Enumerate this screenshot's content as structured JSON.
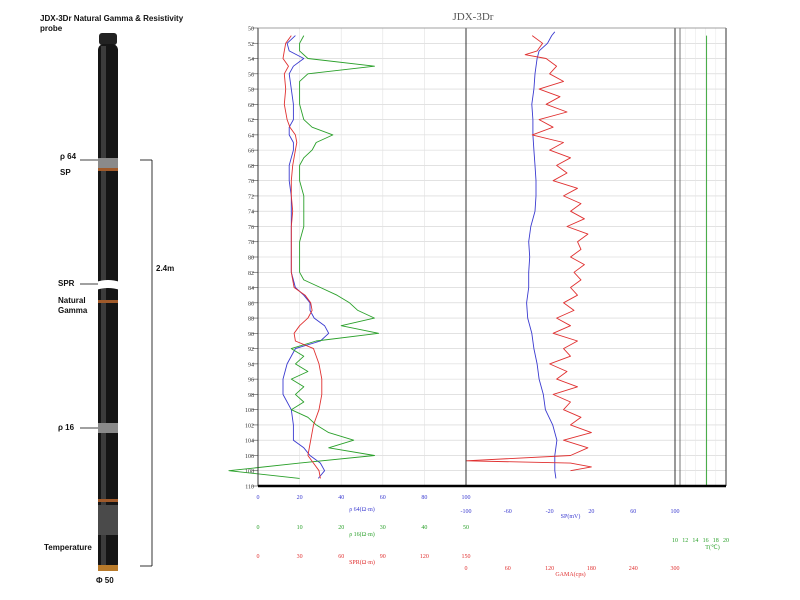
{
  "probe": {
    "title": "JDX-3Dr Natural Gamma & Resistivity probe",
    "labels": {
      "rho64": "ρ 64",
      "sp": "SP",
      "spr": "SPR",
      "gamma": "Natural Gamma",
      "rho16": "ρ 16",
      "temp": "Temperature",
      "diameter": "Φ 50",
      "length": "2.4m"
    }
  },
  "chart_data": {
    "type": "line",
    "title": "JDX-3Dr",
    "depth": {
      "range": [
        50,
        110
      ],
      "ticks": [
        50,
        52,
        54,
        56,
        58,
        60,
        62,
        64,
        66,
        68,
        70,
        72,
        74,
        76,
        78,
        80,
        82,
        84,
        86,
        88,
        90,
        92,
        94,
        96,
        98,
        100,
        102,
        104,
        106,
        108,
        110
      ],
      "grid": true
    },
    "axes": {
      "rho64": {
        "label": "ρ 64(Ω·m)",
        "color": "#3a3ad0",
        "range": [
          0,
          100
        ],
        "ticks": [
          "0",
          "20",
          "40",
          "60",
          "80",
          "100"
        ]
      },
      "rho16": {
        "label": "ρ 16(Ω·m)",
        "color": "#2aa02a",
        "range": [
          0,
          50
        ],
        "ticks": [
          "0",
          "10",
          "20",
          "30",
          "40",
          "50"
        ]
      },
      "spr": {
        "label": "SPR(Ω·m)",
        "color": "#e03030",
        "range": [
          0,
          150
        ],
        "ticks": [
          "0",
          "30",
          "60",
          "90",
          "120",
          "150"
        ]
      },
      "sp": {
        "label": "SP(mV)",
        "color": "#3a3ad0",
        "range": [
          -100,
          100
        ],
        "ticks": [
          "-100",
          "-60",
          "-20",
          "20",
          "60",
          "100"
        ]
      },
      "gamma": {
        "label": "GAMA(cps)",
        "color": "#e03030",
        "range": [
          0,
          300
        ],
        "ticks": [
          "0",
          "60",
          "120",
          "180",
          "240",
          "300"
        ]
      },
      "temp": {
        "label": "T(℃)",
        "color": "#2aa02a",
        "range": [
          10,
          20
        ],
        "ticks": [
          "10",
          "12",
          "14",
          "16",
          "18",
          "20"
        ]
      }
    },
    "series": [
      {
        "key": "rho64",
        "color": "#3a3ad0",
        "track": 1,
        "depth": [
          51,
          52,
          53,
          54,
          55,
          56,
          58,
          60,
          62,
          63,
          64,
          65,
          66,
          68,
          70,
          72,
          74,
          76,
          78,
          80,
          82,
          84,
          85,
          86,
          87,
          88,
          89,
          90,
          91,
          92,
          94,
          96,
          98,
          100,
          102,
          104,
          105,
          106,
          107,
          108,
          109
        ],
        "values": [
          18,
          14,
          15,
          22,
          17,
          15,
          16,
          17,
          17,
          15,
          15,
          17,
          17,
          15,
          15,
          16,
          16,
          16,
          16,
          16,
          16,
          18,
          22,
          25,
          25,
          27,
          32,
          34,
          30,
          18,
          14,
          12,
          12,
          16,
          17,
          17,
          22,
          25,
          30,
          32,
          29
        ]
      },
      {
        "key": "rho16",
        "color": "#2aa02a",
        "track": 1,
        "depth": [
          51,
          52,
          53,
          54,
          55,
          56,
          57,
          58,
          60,
          62,
          63,
          64,
          65,
          66,
          67,
          68,
          70,
          72,
          74,
          76,
          78,
          80,
          82,
          83,
          84,
          85,
          86,
          87,
          88,
          89,
          90,
          91,
          92,
          93,
          94,
          95,
          96,
          97,
          98,
          99,
          100,
          101,
          102,
          103,
          104,
          105,
          106,
          107,
          108,
          109
        ],
        "values": [
          11,
          10,
          10,
          12,
          28,
          12,
          10,
          10,
          10,
          11,
          13,
          18,
          14,
          13,
          11,
          10,
          10,
          11,
          11,
          11,
          10,
          10,
          10,
          11,
          15,
          19,
          22,
          24,
          28,
          20,
          29,
          14,
          8,
          11,
          9,
          12,
          8,
          11,
          9,
          11,
          8,
          12,
          14,
          17,
          23,
          17,
          28,
          10,
          -7,
          10
        ]
      },
      {
        "key": "spr",
        "color": "#e03030",
        "track": 1,
        "depth": [
          51,
          52,
          53,
          54,
          55,
          56,
          58,
          60,
          62,
          63,
          64,
          65,
          66,
          68,
          70,
          72,
          74,
          76,
          78,
          80,
          82,
          84,
          85,
          86,
          87,
          88,
          89,
          90,
          91,
          92,
          94,
          96,
          98,
          100,
          102,
          104,
          106,
          107,
          108,
          109
        ],
        "values": [
          24,
          20,
          19,
          18,
          22,
          19,
          20,
          19,
          21,
          23,
          27,
          28,
          27,
          25,
          24,
          24,
          25,
          24,
          24,
          24,
          24,
          26,
          34,
          38,
          39,
          36,
          30,
          26,
          27,
          40,
          44,
          46,
          46,
          44,
          40,
          38,
          36,
          40,
          44,
          45
        ]
      },
      {
        "key": "sp",
        "color": "#3a3ad0",
        "track": 2,
        "depth": [
          50.5,
          51,
          52,
          53,
          54,
          56,
          58,
          60,
          62,
          64,
          66,
          68,
          70,
          72,
          74,
          76,
          78,
          80,
          82,
          84,
          86,
          88,
          90,
          92,
          94,
          96,
          98,
          100,
          102,
          104,
          106,
          108,
          109
        ],
        "values": [
          -15,
          -18,
          -22,
          -30,
          -32,
          -34,
          -35,
          -37,
          -36,
          -36,
          -35,
          -34,
          -33,
          -33,
          -34,
          -38,
          -40,
          -39,
          -40,
          -40,
          -42,
          -41,
          -37,
          -35,
          -32,
          -30,
          -26,
          -24,
          -17,
          -13,
          -15,
          -15,
          -14
        ]
      },
      {
        "key": "gamma",
        "color": "#e03030",
        "track": 2,
        "irregular": true,
        "depth": [
          51,
          52,
          53,
          53.5,
          54,
          55,
          56,
          57,
          58,
          59,
          60,
          61,
          62,
          63,
          64,
          65,
          66,
          67,
          68,
          69,
          70,
          71,
          72,
          73,
          74,
          75,
          76,
          77,
          78,
          79,
          80,
          81,
          82,
          83,
          84,
          85,
          86,
          87,
          88,
          89,
          90,
          91,
          92,
          93,
          94,
          95,
          96,
          97,
          98,
          99,
          100,
          101,
          102,
          103,
          104,
          105,
          106,
          106.7,
          107,
          107.5,
          108
        ],
        "values": [
          95,
          110,
          102,
          85,
          115,
          130,
          120,
          140,
          105,
          135,
          115,
          145,
          105,
          125,
          95,
          140,
          120,
          150,
          130,
          145,
          125,
          160,
          140,
          165,
          150,
          170,
          145,
          175,
          160,
          165,
          150,
          170,
          155,
          165,
          150,
          160,
          140,
          155,
          130,
          150,
          125,
          160,
          140,
          150,
          120,
          145,
          130,
          160,
          125,
          150,
          140,
          165,
          150,
          180,
          140,
          175,
          150,
          0,
          150,
          180,
          150
        ]
      },
      {
        "key": "temp",
        "color": "#2aa02a",
        "track": 3,
        "depth": [
          51,
          110
        ],
        "values": [
          16.2,
          16.2
        ]
      }
    ]
  }
}
